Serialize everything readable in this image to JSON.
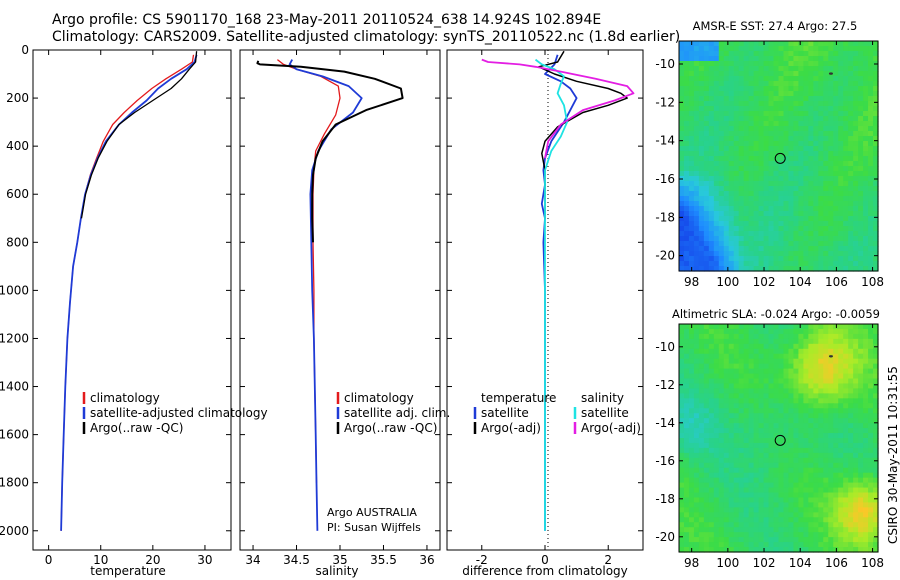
{
  "header": {
    "line1": "Argo profile: CS 5901170_168 23-May-2011 20110524_638 14.924S 102.894E",
    "line2": "Climatology: CARS2009. Satellite-adjusted climatology: synTS_20110522.nc (1.8d earlier)"
  },
  "footer": {
    "stamp": "CSIRO 30-May-2011 10:31:55"
  },
  "colors": {
    "climatology": "#e31a1c",
    "satellite": "#1f3bd6",
    "argo": "#000000",
    "sal_satellite": "#1ee3e3",
    "sal_argo": "#e31ee3"
  },
  "chart_data": [
    {
      "type": "line",
      "xlabel": "temperature",
      "ylabel": "",
      "xlim": [
        -3,
        35
      ],
      "ylim": [
        2080,
        0
      ],
      "y_reversed": true,
      "xticks": [
        0,
        10,
        20,
        30
      ],
      "yticks": [
        0,
        200,
        400,
        600,
        800,
        1000,
        1200,
        1400,
        1600,
        1800,
        2000
      ],
      "legend": [
        "climatology",
        "satellite-adjusted climatology",
        "Argo(..raw -QC)"
      ],
      "series": [
        {
          "name": "climatology",
          "color_key": "climatology",
          "width": 1.3,
          "x": [
            27.8,
            27.6,
            25.5,
            22.5,
            19.8,
            17.0,
            14.5,
            12.3,
            10.5,
            9.2,
            8.0,
            7.0,
            6.2,
            5.5,
            4.7,
            4.1,
            3.6,
            3.2,
            2.9,
            2.6,
            2.4
          ],
          "y": [
            20,
            50,
            80,
            120,
            160,
            210,
            260,
            310,
            380,
            450,
            520,
            600,
            700,
            800,
            900,
            1050,
            1200,
            1400,
            1600,
            1800,
            2000
          ]
        },
        {
          "name": "satellite-adjusted climatology",
          "color_key": "satellite",
          "width": 1.8,
          "x": [
            28.4,
            28.0,
            26.5,
            23.5,
            21.0,
            18.8,
            16.0,
            13.5,
            11.0,
            9.4,
            8.1,
            7.0,
            6.2,
            5.5,
            4.7,
            4.1,
            3.6,
            3.2,
            2.9,
            2.6,
            2.4
          ],
          "y": [
            20,
            50,
            80,
            120,
            160,
            210,
            260,
            310,
            380,
            450,
            520,
            600,
            700,
            800,
            900,
            1050,
            1200,
            1400,
            1600,
            1800,
            2000
          ]
        },
        {
          "name": "Argo(..raw -QC)",
          "color_key": "argo",
          "width": 1.3,
          "x": [
            28.4,
            28.2,
            27.0,
            25.5,
            23.5,
            20.0,
            16.5,
            13.5,
            11.2,
            9.5,
            8.2,
            7.1,
            6.3
          ],
          "y": [
            5,
            50,
            80,
            120,
            160,
            210,
            260,
            310,
            380,
            450,
            520,
            600,
            700
          ]
        }
      ]
    },
    {
      "type": "line",
      "xlabel": "salinity",
      "ylabel": "",
      "xlim": [
        33.85,
        36.15
      ],
      "ylim": [
        2080,
        0
      ],
      "y_reversed": true,
      "xticks": [
        34,
        34.5,
        35,
        35.5,
        36
      ],
      "legend": [
        "climatology",
        "satellite adj. clim.",
        "Argo(..raw -QC)"
      ],
      "annotations": [
        "Argo AUSTRALIA",
        "PI: Susan Wijffels"
      ],
      "series": [
        {
          "name": "climatology",
          "color_key": "climatology",
          "width": 1.3,
          "x": [
            34.28,
            34.35,
            34.5,
            34.78,
            34.98,
            35.0,
            34.95,
            34.82,
            34.72,
            34.7,
            34.69,
            34.69,
            34.7,
            34.7,
            34.71,
            34.72,
            34.73
          ],
          "y": [
            40,
            60,
            80,
            110,
            150,
            200,
            270,
            350,
            420,
            500,
            600,
            800,
            1000,
            1200,
            1400,
            1600,
            1800
          ]
        },
        {
          "name": "satellite adj. clim.",
          "color_key": "satellite",
          "width": 1.8,
          "x": [
            34.45,
            34.42,
            34.5,
            34.8,
            35.1,
            35.25,
            35.15,
            34.9,
            34.75,
            34.68,
            34.66,
            34.67,
            34.68,
            34.7,
            34.71,
            34.72,
            34.73,
            34.74
          ],
          "y": [
            40,
            60,
            80,
            110,
            150,
            200,
            260,
            330,
            420,
            500,
            600,
            800,
            1000,
            1200,
            1400,
            1600,
            1800,
            2000
          ]
        },
        {
          "name": "Argo(..raw -QC)",
          "color_key": "argo",
          "width": 2.0,
          "x": [
            34.06,
            34.05,
            34.08,
            34.55,
            35.05,
            35.4,
            35.7,
            35.72,
            35.3,
            34.95,
            34.8,
            34.72,
            34.69,
            34.68,
            34.68,
            34.69
          ],
          "y": [
            45,
            55,
            60,
            70,
            90,
            120,
            160,
            200,
            250,
            310,
            380,
            450,
            520,
            600,
            700,
            800
          ]
        }
      ]
    },
    {
      "type": "line",
      "xlabel": "difference from climatology",
      "ylabel": "",
      "xlim": [
        -3.1,
        3.1
      ],
      "ylim": [
        2080,
        0
      ],
      "y_reversed": true,
      "xticks": [
        -2,
        0,
        2
      ],
      "legend": [
        "temperature",
        "satellite",
        "Argo(-adj)",
        "salinity",
        "satellite",
        "Argo(-adj)"
      ],
      "series": [
        {
          "name": "temperature satellite",
          "color_key": "satellite",
          "width": 1.8,
          "x": [
            0.4,
            0.3,
            0.0,
            0.5,
            0.8,
            1.0,
            0.8,
            0.6,
            0.2,
            0.0,
            -0.05,
            0.0,
            -0.1,
            0.0,
            -0.05,
            0.0,
            0.0,
            0.0
          ],
          "y": [
            20,
            60,
            100,
            130,
            160,
            200,
            250,
            300,
            380,
            450,
            500,
            560,
            640,
            700,
            800,
            1000,
            1500,
            2000
          ]
        },
        {
          "name": "temperature Argo(-adj)",
          "color_key": "argo",
          "width": 1.5,
          "x": [
            0.6,
            0.4,
            -0.2,
            0.3,
            1.0,
            2.0,
            2.4,
            2.6,
            2.0,
            1.2,
            0.4,
            0.0,
            -0.1,
            0.0,
            0.0
          ],
          "y": [
            5,
            50,
            70,
            100,
            130,
            160,
            180,
            200,
            230,
            260,
            320,
            380,
            430,
            500,
            700
          ]
        },
        {
          "name": "salinity satellite",
          "color_key": "sal_satellite",
          "width": 1.8,
          "x": [
            -0.3,
            -0.1,
            0.3,
            0.6,
            0.5,
            0.4,
            0.6,
            0.7,
            0.5,
            0.2,
            0.0,
            0.0,
            0.0,
            0.0,
            0.0,
            0.0
          ],
          "y": [
            40,
            60,
            80,
            110,
            140,
            180,
            230,
            300,
            360,
            420,
            500,
            700,
            1000,
            1400,
            1800,
            2000
          ]
        },
        {
          "name": "salinity Argo(-adj)",
          "color_key": "sal_argo",
          "width": 1.8,
          "x": [
            -2.0,
            -1.8,
            -0.8,
            -0.3,
            0.5,
            1.6,
            2.6,
            2.8,
            2.2,
            1.2,
            0.5,
            0.1,
            0.0
          ],
          "y": [
            40,
            50,
            60,
            70,
            90,
            120,
            150,
            180,
            210,
            250,
            310,
            380,
            450
          ]
        }
      ]
    },
    {
      "type": "heatmap",
      "title": "AMSR-E SST: 27.4  Argo: 27.5",
      "xlim": [
        97.3,
        108.3
      ],
      "ylim": [
        -20.8,
        -8.8
      ],
      "xticks": [
        98,
        100,
        102,
        104,
        106,
        108
      ],
      "yticks": [
        -10,
        -12,
        -14,
        -16,
        -18,
        -20
      ],
      "marker": {
        "lon": 102.894,
        "lat": -14.924
      }
    },
    {
      "type": "heatmap",
      "title": "Altimetric SLA: -0.024  Argo: -0.0059",
      "xlim": [
        97.3,
        108.3
      ],
      "ylim": [
        -20.8,
        -8.8
      ],
      "xticks": [
        98,
        100,
        102,
        104,
        106,
        108
      ],
      "yticks": [
        -10,
        -12,
        -14,
        -16,
        -18,
        -20
      ],
      "marker": {
        "lon": 102.894,
        "lat": -14.924
      }
    }
  ]
}
